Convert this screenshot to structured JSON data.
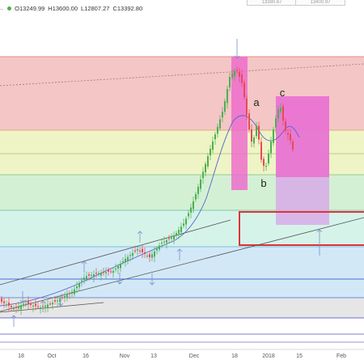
{
  "header": {
    "ohlc_open": "O13249.99",
    "ohlc_high": "H13600.00",
    "ohlc_low": "L12807.27",
    "ohlc_close": "C13392.80",
    "top_left_box": "13380.67",
    "top_right_box": "13400.97"
  },
  "chart_data": {
    "type": "candlestick",
    "x_tick_labels": [
      "18",
      "Oct",
      "16",
      "Nov",
      "13",
      "Dec",
      "18",
      "2018",
      "15",
      "Feb"
    ],
    "wave_labels": [
      "a",
      "b",
      "c"
    ],
    "colors": {
      "up": "#4caf50",
      "down": "#e64a57",
      "ma": "#5566cc",
      "zone_red": "#f4c6c6",
      "zone_yellow": "#eef4c6",
      "zone_green": "#d4f0d4",
      "zone_teal": "#d6f3ea",
      "zone_blue": "#d3e8f7",
      "zone_grey": "#e6e6e6",
      "highlight_magenta": "#ee66cc",
      "highlight_lavender": "#d7a8e8",
      "box_outline": "#e03333"
    }
  }
}
